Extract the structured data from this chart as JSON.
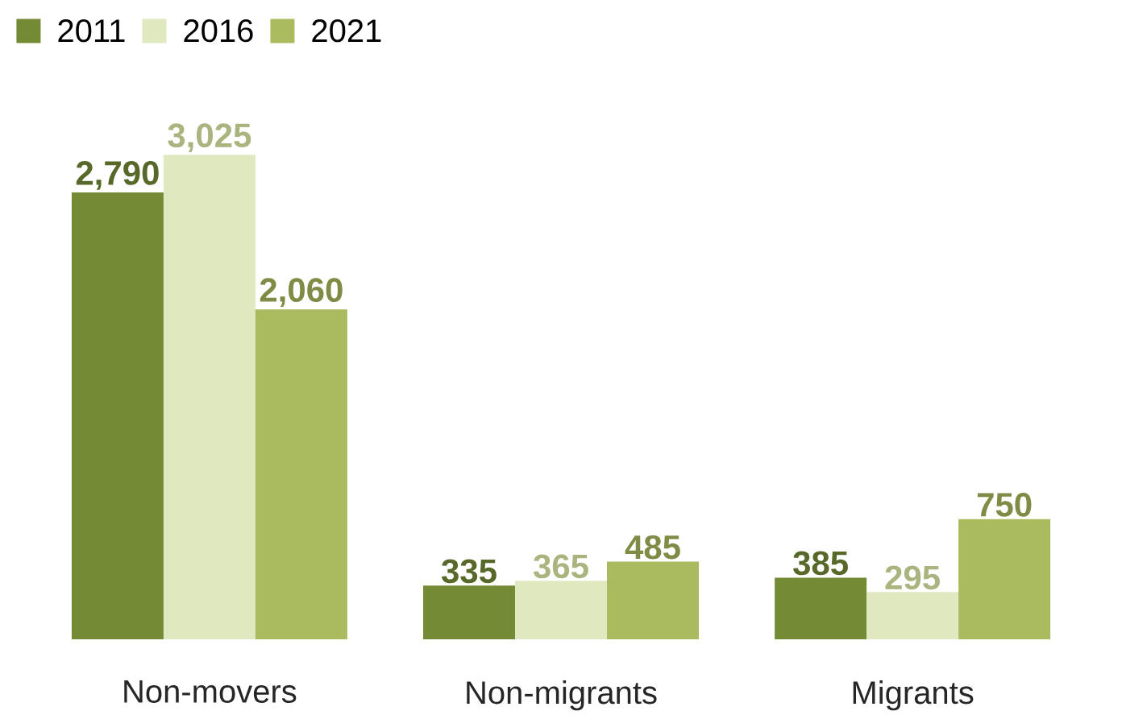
{
  "chart_data": {
    "type": "bar",
    "categories": [
      "Non-movers",
      "Non-migrants",
      "Migrants"
    ],
    "series": [
      {
        "name": "2011",
        "color": "#748b35",
        "values": [
          2790,
          335,
          385
        ],
        "value_labels": [
          "2,790",
          "335",
          "385"
        ]
      },
      {
        "name": "2016",
        "color": "#e0e8c0",
        "values": [
          3025,
          365,
          295
        ],
        "value_labels": [
          "3,025",
          "365",
          "295"
        ]
      },
      {
        "name": "2021",
        "color": "#a9bb5e",
        "values": [
          2060,
          485,
          750
        ],
        "value_labels": [
          "2,060",
          "485",
          "750"
        ]
      }
    ],
    "legend": "top left"
  }
}
